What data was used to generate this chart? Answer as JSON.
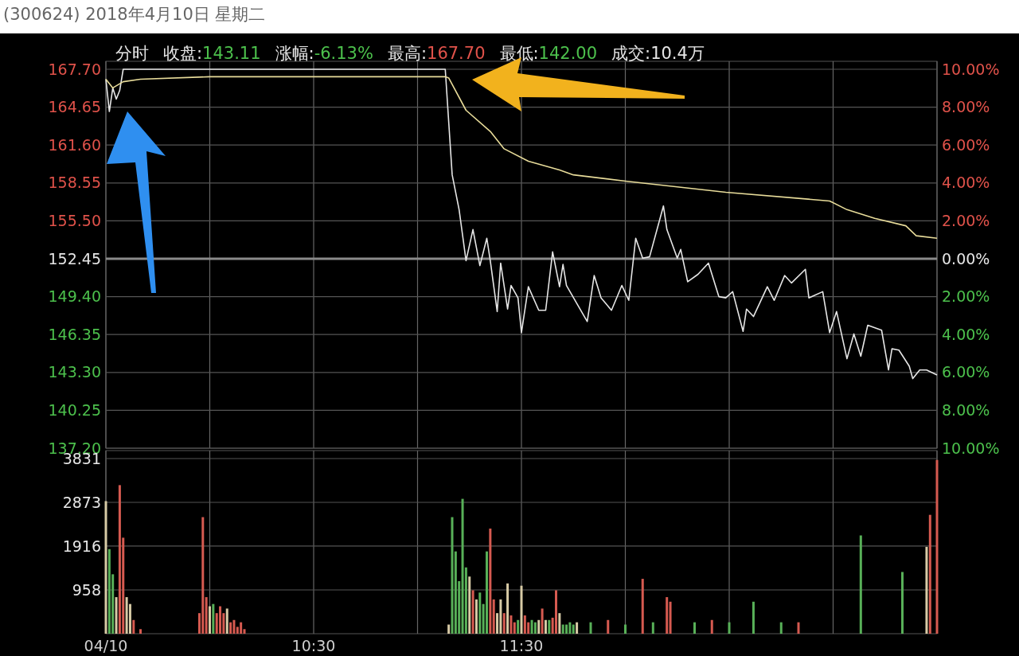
{
  "chart_data": [
    {
      "type": "line",
      "title": "(300624) 2018年4月10日 星期二",
      "subtitle": "分时 收盘:143.11 涨幅:-6.13% 最高:167.70 最低:142.00 成交:10.4万",
      "categories": [
        null,
        null,
        null,
        null,
        null,
        null,
        null,
        null,
        null,
        null,
        null,
        null,
        null,
        null,
        null,
        null,
        null,
        null,
        null,
        null,
        null,
        null,
        null,
        null,
        null,
        null,
        null,
        null,
        null,
        null,
        null,
        null,
        null,
        null,
        null,
        null,
        null,
        null,
        null,
        null,
        null,
        null,
        null,
        null,
        null,
        null,
        null,
        null,
        null,
        null,
        null,
        null,
        null,
        null,
        null,
        null,
        null,
        null,
        null,
        null,
        null,
        null,
        null,
        null,
        null,
        null,
        null,
        null,
        null,
        null,
        null,
        null,
        null,
        null,
        null,
        null,
        null,
        null,
        null,
        null,
        null,
        null,
        null,
        null,
        null,
        null,
        null,
        null,
        null,
        null,
        null,
        null,
        null,
        null,
        null,
        null,
        null,
        null,
        null,
        null,
        null,
        null,
        null,
        null,
        null,
        null,
        null,
        null,
        null,
        null,
        null,
        null,
        null,
        null,
        null,
        null,
        null,
        null,
        null,
        null,
        null,
        null,
        null,
        null,
        null,
        null,
        null,
        null,
        null,
        null,
        null,
        null,
        null,
        null,
        null,
        null,
        null,
        null,
        null,
        null,
        null,
        null,
        null,
        null,
        null,
        null,
        null,
        null,
        null,
        null,
        null,
        null,
        null,
        null,
        null,
        null,
        null,
        null,
        null,
        null,
        null,
        null,
        null,
        null,
        null,
        null,
        null,
        null,
        null,
        null,
        null,
        null,
        null,
        null,
        null,
        null,
        null,
        null,
        null,
        null,
        null,
        null,
        null,
        null,
        null,
        null,
        null,
        null,
        null,
        null,
        null,
        null,
        null,
        null,
        null,
        null,
        null,
        null,
        null,
        null,
        null,
        null,
        null,
        null,
        null,
        null,
        null,
        null,
        null,
        null,
        null,
        null,
        null,
        null,
        null,
        null,
        null,
        null,
        null,
        null,
        null,
        null,
        null,
        null,
        null,
        null,
        null,
        null,
        null,
        null,
        null,
        null,
        null,
        null,
        null,
        null,
        null,
        null,
        null,
        null,
        null
      ],
      "ylim": [
        137.2,
        167.7
      ],
      "yticks": [
        {
          "value": 137.2,
          "label": "137.20"
        },
        {
          "value": 140.25,
          "label": "140.25"
        },
        {
          "value": 143.3,
          "label": "143.30"
        },
        {
          "value": 146.35,
          "label": "146.35"
        },
        {
          "value": 149.4,
          "label": "149.40"
        },
        {
          "value": 152.45,
          "label": "152.45"
        },
        {
          "value": 155.5,
          "label": "155.50"
        },
        {
          "value": 158.55,
          "label": "158.55"
        },
        {
          "value": 161.6,
          "label": "161.60"
        },
        {
          "value": 164.65,
          "label": "164.65"
        },
        {
          "value": 167.7,
          "label": "167.70"
        }
      ],
      "y2lim": [
        -10,
        10
      ],
      "y2ticks": [
        {
          "value": -10,
          "label": "10.00%"
        },
        {
          "value": -8,
          "label": "8.00%"
        },
        {
          "value": -6,
          "label": "6.00%"
        },
        {
          "value": -4,
          "label": "4.00%"
        },
        {
          "value": -2,
          "label": "2.00%"
        },
        {
          "value": 0,
          "label": "0.00%"
        },
        {
          "value": 2,
          "label": "2.00%"
        },
        {
          "value": 4,
          "label": "4.00%"
        },
        {
          "value": 6,
          "label": "6.00%"
        },
        {
          "value": 8,
          "label": "8.00%"
        },
        {
          "value": 10,
          "label": "10.00%"
        }
      ],
      "ref_lines": [
        {
          "axis": "y",
          "value": 152.45,
          "label": null,
          "color": "#8a8a8a"
        }
      ],
      "grid": true,
      "tick_labels": "y",
      "series": [
        {
          "color": "#e6e6e6",
          "values": [
            166.9,
            164.3,
            166.2,
            165.3,
            166.0,
            167.7,
            null,
            null,
            null,
            null,
            null,
            null,
            null,
            null,
            null,
            null,
            null,
            null,
            null,
            null,
            null,
            null,
            null,
            null,
            null,
            null,
            null,
            null,
            null,
            null,
            null,
            null,
            null,
            null,
            null,
            null,
            null,
            null,
            null,
            null,
            null,
            null,
            null,
            null,
            null,
            null,
            null,
            null,
            null,
            null,
            null,
            null,
            null,
            null,
            null,
            null,
            null,
            null,
            null,
            null,
            null,
            null,
            null,
            null,
            null,
            null,
            null,
            null,
            null,
            null,
            null,
            null,
            null,
            null,
            null,
            null,
            null,
            null,
            null,
            null,
            null,
            null,
            null,
            null,
            null,
            null,
            null,
            null,
            null,
            null,
            null,
            null,
            null,
            null,
            null,
            null,
            null,
            null,
            167.7,
            null,
            159.2,
            null,
            156.4,
            null,
            152.3,
            null,
            154.8,
            null,
            151.9,
            null,
            154.1,
            152.3,
            null,
            148.2,
            152.1,
            null,
            148.4,
            150.3,
            null,
            149.3,
            146.5,
            null,
            150.2,
            null,
            null,
            148.3,
            null,
            148.3,
            null,
            153.0,
            null,
            150.2,
            152.0,
            150.3,
            null,
            null,
            null,
            null,
            null,
            147.4,
            null,
            151.1,
            null,
            149.3,
            null,
            null,
            148.3,
            null,
            null,
            150.3,
            null,
            149.1,
            null,
            154.1,
            null,
            152.5,
            null,
            152.6,
            null,
            null,
            null,
            156.7,
            154.8,
            null,
            null,
            152.5,
            153.2,
            null,
            150.6,
            null,
            null,
            151.2,
            null,
            null,
            152.1,
            null,
            null,
            149.4,
            null,
            149.3,
            null,
            149.8,
            null,
            null,
            146.6,
            148.4,
            null,
            147.8,
            null,
            null,
            null,
            150.2,
            null,
            149.1,
            null,
            null,
            151.1,
            null,
            150.5,
            null,
            null,
            null,
            151.6,
            149.3,
            null,
            null,
            null,
            149.8,
            null,
            146.5,
            null,
            148.2,
            null,
            null,
            144.4,
            null,
            146.4,
            null,
            144.6,
            null,
            147.1,
            null,
            null,
            null,
            146.7,
            null,
            143.5,
            145.2,
            null,
            145.1,
            null,
            null,
            143.8,
            142.8,
            null,
            143.5,
            null,
            143.5,
            null,
            null,
            143.1
          ]
        },
        {
          "color": "#e8dc9a",
          "values": [
            166.9,
            null,
            166.2,
            null,
            null,
            166.7,
            null,
            null,
            null,
            null,
            166.9,
            null,
            null,
            null,
            null,
            null,
            null,
            null,
            null,
            null,
            null,
            null,
            null,
            null,
            null,
            null,
            null,
            null,
            null,
            null,
            167.1,
            null,
            null,
            null,
            null,
            null,
            null,
            null,
            null,
            null,
            null,
            null,
            null,
            null,
            null,
            null,
            null,
            null,
            null,
            null,
            null,
            null,
            null,
            null,
            null,
            null,
            null,
            null,
            null,
            null,
            null,
            null,
            null,
            null,
            null,
            null,
            null,
            null,
            null,
            null,
            null,
            null,
            null,
            null,
            null,
            null,
            null,
            null,
            null,
            null,
            null,
            null,
            null,
            null,
            null,
            null,
            null,
            null,
            null,
            null,
            null,
            null,
            null,
            null,
            null,
            null,
            null,
            null,
            167.1,
            167.0,
            null,
            null,
            null,
            null,
            164.4,
            null,
            null,
            null,
            null,
            null,
            null,
            162.7,
            null,
            null,
            null,
            161.3,
            null,
            null,
            null,
            null,
            null,
            null,
            160.3,
            null,
            null,
            null,
            null,
            null,
            null,
            null,
            null,
            159.6,
            null,
            null,
            null,
            159.2,
            null,
            null,
            null,
            null,
            null,
            null,
            null,
            null,
            null,
            null,
            null,
            null,
            null,
            null,
            158.7,
            null,
            null,
            null,
            null,
            null,
            null,
            null,
            null,
            null,
            null,
            null,
            null,
            null,
            null,
            null,
            null,
            null,
            null,
            null,
            null,
            null,
            null,
            null,
            null,
            null,
            null,
            null,
            null,
            157.8,
            null,
            null,
            null,
            null,
            null,
            null,
            null,
            null,
            null,
            null,
            null,
            null,
            null,
            null,
            null,
            null,
            null,
            null,
            null,
            null,
            null,
            null,
            null,
            null,
            null,
            null,
            null,
            null,
            null,
            157.1,
            null,
            null,
            null,
            null,
            156.4,
            null,
            null,
            null,
            null,
            null,
            null,
            null,
            155.7,
            null,
            null,
            null,
            null,
            null,
            null,
            null,
            null,
            155.1,
            null,
            null,
            154.3,
            null,
            null,
            null,
            null,
            null,
            154.1
          ]
        }
      ]
    },
    {
      "type": "bar",
      "categories": [
        "04/10",
        null,
        null,
        null,
        null,
        null,
        null,
        null,
        null,
        null,
        null,
        null,
        null,
        null,
        null,
        null,
        null,
        null,
        null,
        null,
        null,
        null,
        null,
        null,
        null,
        null,
        null,
        null,
        null,
        null,
        null,
        null,
        null,
        null,
        null,
        null,
        null,
        null,
        null,
        null,
        null,
        null,
        null,
        null,
        null,
        null,
        null,
        null,
        null,
        null,
        null,
        null,
        null,
        null,
        null,
        null,
        null,
        null,
        null,
        null,
        "10:30",
        null,
        null,
        null,
        null,
        null,
        null,
        null,
        null,
        null,
        null,
        null,
        null,
        null,
        null,
        null,
        null,
        null,
        null,
        null,
        null,
        null,
        null,
        null,
        null,
        null,
        null,
        null,
        null,
        null,
        null,
        null,
        null,
        null,
        null,
        null,
        null,
        null,
        null,
        null,
        null,
        null,
        null,
        null,
        null,
        null,
        null,
        null,
        null,
        null,
        null,
        null,
        null,
        null,
        null,
        null,
        null,
        null,
        null,
        null,
        "11:30",
        null,
        null,
        null,
        null,
        null,
        null,
        null,
        null,
        null,
        null,
        null,
        null,
        null,
        null,
        null,
        null,
        null,
        null,
        null,
        null,
        null,
        null,
        null,
        null,
        null,
        null,
        null,
        null,
        null,
        null,
        null,
        null,
        null,
        null,
        null,
        null,
        null,
        null,
        null,
        null,
        null,
        null,
        null,
        null,
        null,
        null,
        null,
        null,
        null,
        null,
        null,
        null,
        null,
        null,
        null,
        null,
        null,
        null,
        null,
        null,
        null,
        null,
        null,
        null,
        null,
        null,
        null,
        null,
        null,
        null,
        null,
        null,
        null,
        null,
        null,
        null,
        null,
        null,
        null,
        null,
        null,
        null,
        null,
        null,
        null,
        null,
        null,
        null,
        null,
        null,
        null,
        null,
        null,
        null,
        null,
        null,
        null,
        null,
        null,
        null,
        null,
        null,
        null,
        null,
        null,
        null,
        null,
        null,
        null,
        null,
        null,
        null,
        null,
        null,
        null,
        null,
        null,
        null,
        null,
        null
      ],
      "ylim": [
        0,
        3831
      ],
      "yticks": [
        958,
        1916,
        2873,
        3831
      ],
      "grid": true,
      "values": [
        2900,
        1850,
        1300,
        800,
        3250,
        2100,
        800,
        650,
        300,
        null,
        100,
        null,
        null,
        null,
        null,
        null,
        null,
        null,
        null,
        null,
        null,
        null,
        null,
        null,
        null,
        null,
        null,
        450,
        2550,
        800,
        600,
        650,
        450,
        600,
        450,
        550,
        250,
        300,
        150,
        250,
        100,
        null,
        null,
        null,
        null,
        null,
        null,
        null,
        null,
        null,
        null,
        null,
        null,
        null,
        null,
        null,
        null,
        null,
        null,
        null,
        null,
        null,
        null,
        null,
        null,
        null,
        null,
        null,
        null,
        null,
        null,
        null,
        null,
        null,
        null,
        null,
        null,
        null,
        null,
        null,
        null,
        null,
        null,
        null,
        null,
        null,
        null,
        null,
        null,
        null,
        null,
        null,
        null,
        null,
        null,
        null,
        null,
        null,
        null,
        200,
        2550,
        1800,
        1150,
        2950,
        1450,
        1250,
        950,
        750,
        900,
        650,
        1800,
        2300,
        750,
        450,
        750,
        450,
        1100,
        400,
        250,
        300,
        1050,
        400,
        250,
        300,
        250,
        300,
        550,
        300,
        300,
        350,
        950,
        450,
        200,
        200,
        250,
        200,
        250,
        null,
        null,
        null,
        250,
        null,
        null,
        null,
        null,
        300,
        null,
        null,
        null,
        null,
        200,
        null,
        null,
        null,
        null,
        1200,
        null,
        null,
        250,
        null,
        null,
        null,
        800,
        700,
        null,
        null,
        null,
        null,
        null,
        null,
        250,
        null,
        null,
        null,
        null,
        300,
        null,
        null,
        null,
        null,
        250,
        null,
        null,
        null,
        null,
        null,
        null,
        700,
        null,
        null,
        null,
        null,
        null,
        null,
        null,
        250,
        null,
        null,
        null,
        null,
        250,
        null,
        null,
        null,
        null,
        null,
        null,
        null,
        null,
        null,
        null,
        null,
        null,
        null,
        null,
        null,
        null,
        null,
        2150,
        null,
        null,
        null,
        null,
        null,
        null,
        null,
        null,
        null,
        null,
        null,
        1350,
        null,
        null,
        null,
        null,
        null,
        null,
        1900,
        2600,
        null,
        3800
      ],
      "colors": [
        "#d8cba6",
        "#58b058",
        "#58b058",
        "#d8cba6",
        "#d65a50",
        "#d65a50",
        "#d8cba6",
        "#d8cba6",
        "#d65a50",
        null,
        "#d65a50",
        null,
        null,
        null,
        null,
        null,
        null,
        null,
        null,
        null,
        null,
        null,
        null,
        null,
        null,
        null,
        null,
        "#d65a50",
        "#d65a50",
        "#d65a50",
        "#d8cba6",
        "#58b058",
        "#d65a50",
        "#d65a50",
        "#d65a50",
        "#d8cba6",
        "#d65a50",
        "#d65a50",
        "#d65a50",
        "#d65a50",
        "#d65a50",
        null,
        null,
        null,
        null,
        null,
        null,
        null,
        null,
        null,
        null,
        null,
        null,
        null,
        null,
        null,
        null,
        null,
        null,
        null,
        null,
        null,
        null,
        null,
        null,
        null,
        null,
        null,
        null,
        null,
        null,
        null,
        null,
        null,
        null,
        null,
        null,
        null,
        null,
        null,
        null,
        null,
        null,
        null,
        null,
        null,
        null,
        null,
        null,
        null,
        null,
        null,
        null,
        null,
        null,
        null,
        null,
        null,
        null,
        "#d8cba6",
        "#58b058",
        "#58b058",
        "#58b058",
        "#58b058",
        "#58b058",
        "#d8cba6",
        "#d65a50",
        "#d8cba6",
        "#58b058",
        "#58b058",
        "#58b058",
        "#d65a50",
        "#d65a50",
        "#d8cba6",
        "#d8cba6",
        "#d65a50",
        "#d8cba6",
        "#d65a50",
        "#d65a50",
        "#58b058",
        "#d8cba6",
        "#d65a50",
        "#d65a50",
        "#58b058",
        "#58b058",
        "#d8cba6",
        "#d65a50",
        "#d8cba6",
        "#58b058",
        "#d65a50",
        "#d65a50",
        "#d8cba6",
        "#58b058",
        "#58b058",
        "#58b058",
        "#58b058",
        "#d8cba6",
        null,
        null,
        null,
        "#58b058",
        null,
        null,
        null,
        null,
        "#d65a50",
        null,
        null,
        null,
        null,
        "#58b058",
        null,
        null,
        null,
        null,
        "#d65a50",
        null,
        null,
        "#58b058",
        null,
        null,
        null,
        "#d65a50",
        "#d65a50",
        null,
        null,
        null,
        null,
        null,
        null,
        "#58b058",
        null,
        null,
        null,
        null,
        "#d65a50",
        null,
        null,
        null,
        null,
        "#58b058",
        null,
        null,
        null,
        null,
        null,
        null,
        "#58b058",
        null,
        null,
        null,
        null,
        null,
        null,
        null,
        "#58b058",
        null,
        null,
        null,
        null,
        "#d65a50",
        null,
        null,
        null,
        null,
        null,
        null,
        null,
        null,
        null,
        null,
        null,
        null,
        null,
        null,
        null,
        null,
        null,
        "#58b058",
        null,
        null,
        null,
        null,
        null,
        null,
        null,
        null,
        null,
        null,
        null,
        "#58b058",
        null,
        null,
        null,
        null,
        null,
        null,
        "#d8cba6",
        "#d65a50",
        null,
        "#d65a50"
      ]
    }
  ]
}
